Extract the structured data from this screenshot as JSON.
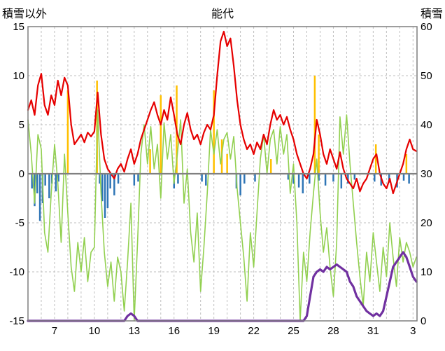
{
  "chart_data": {
    "type": "line",
    "title": "能代",
    "left_axis": {
      "label": "積雪以外",
      "min": -15,
      "max": 15,
      "ticks": [
        15,
        10,
        5,
        0,
        -5,
        -10,
        -15
      ]
    },
    "right_axis": {
      "label": "積雪",
      "min": 0,
      "max": 60,
      "ticks": [
        60,
        50,
        40,
        30,
        20,
        10,
        0
      ]
    },
    "x_axis": {
      "min": 5,
      "max": 34.3,
      "tick_days": [
        7,
        10,
        13,
        16,
        19,
        22,
        25,
        28,
        31,
        34
      ],
      "tick_labels": [
        "7",
        "10",
        "13",
        "16",
        "19",
        "22",
        "25",
        "28",
        "31",
        "3"
      ],
      "grid_interval": 1
    },
    "x_start": 5,
    "x_step": 0.25,
    "colors": {
      "red_line": "#e60000",
      "green_line": "#92d050",
      "blue_bars": "#2e75b6",
      "orange_bars": "#ffc000",
      "purple_snow_line": "#7030a0",
      "grid": "#bfbfbf",
      "border": "#7f7f7f",
      "zero_line": "#808080"
    },
    "series": {
      "red_line": {
        "axis": "left",
        "values": [
          6.5,
          7.5,
          6,
          9,
          10.2,
          7,
          6,
          8,
          7,
          9.5,
          8,
          9.8,
          9,
          5,
          3,
          3.5,
          4,
          3.2,
          4.2,
          3.8,
          4.3,
          8.3,
          4,
          1.5,
          0.5,
          0,
          -0.5,
          0.5,
          1,
          0.2,
          1.5,
          2.5,
          1,
          2,
          3.5,
          4.5,
          5.5,
          6.5,
          7.3,
          6,
          5,
          6.5,
          5.5,
          7.8,
          6,
          4,
          3,
          5,
          6.2,
          4.5,
          3.5,
          4,
          3,
          4.2,
          5,
          4.5,
          6,
          10,
          13.5,
          14.5,
          13,
          13.8,
          11,
          7.5,
          5,
          3.5,
          2.5,
          3,
          2,
          3.2,
          2.5,
          4,
          3,
          5,
          6.5,
          5.5,
          6,
          5,
          5.8,
          4.5,
          3.5,
          2,
          1,
          0,
          -0.5,
          0.5,
          2,
          5.5,
          4,
          2,
          1,
          2.5,
          1.5,
          0.5,
          2.2,
          0.5,
          -0.5,
          -1,
          -1.5,
          -0.5,
          -1.8,
          -1,
          -0.5,
          0.5,
          1.5,
          2,
          0,
          -1,
          -1.5,
          -0.5,
          -2,
          -1,
          0,
          1,
          2.5,
          3.5,
          2.5,
          2.3
        ]
      },
      "green_line": {
        "axis": "left",
        "values": [
          5.5,
          2,
          -3,
          4,
          2.5,
          -6,
          -8,
          -2,
          3,
          -1,
          -7,
          2,
          -4,
          -9.5,
          -12,
          -7,
          -10,
          -6.5,
          -11,
          -8,
          -7.5,
          6.5,
          -2,
          -8,
          -11.5,
          -9,
          -13,
          -8.5,
          -10,
          -14,
          -9,
          -3,
          -15,
          -7,
          2,
          5,
          1,
          4.8,
          0.5,
          3,
          -2.5,
          5.2,
          1.5,
          4,
          -1,
          2,
          5.5,
          -3,
          0.5,
          -6,
          -9,
          -4,
          -12,
          -7.5,
          -2,
          4.5,
          2,
          4.5,
          1,
          3.5,
          4.2,
          1.5,
          3.8,
          -1.5,
          -5,
          -8.5,
          -13,
          -6,
          -9.5,
          -4,
          1.5,
          4,
          0,
          3.5,
          4.5,
          1,
          4.8,
          2,
          4,
          -2,
          1,
          -5,
          -15,
          -8,
          -11,
          -6,
          -2,
          1.5,
          -4,
          -8,
          -5.5,
          -9.5,
          -12.5,
          -7,
          5.8,
          2,
          6,
          1,
          -3,
          -7,
          -10.5,
          -13.5,
          -8,
          -11,
          -6,
          -9,
          -12,
          -7.5,
          -10.5,
          -5,
          -8.5,
          -11.5,
          -6.5,
          -9,
          -7,
          -8,
          -9.5,
          -8.5
        ]
      },
      "purple_snow_line": {
        "axis": "right",
        "values": [
          0,
          0,
          0,
          0,
          0,
          0,
          0,
          0,
          0,
          0,
          0,
          0,
          0,
          0,
          0,
          0,
          0,
          0,
          0,
          0,
          0,
          0,
          0,
          0,
          0,
          0,
          0,
          0,
          0,
          0,
          1,
          1.5,
          1,
          0,
          0,
          0,
          0,
          0,
          0,
          0,
          0,
          0,
          0,
          0,
          0,
          0,
          0,
          0,
          0,
          0,
          0,
          0,
          0,
          0,
          0,
          0,
          0,
          0,
          0,
          0,
          0,
          0,
          0,
          0,
          0,
          0,
          0,
          0,
          0,
          0,
          0,
          0,
          0,
          0,
          0,
          0,
          0,
          0,
          0,
          0,
          0,
          0,
          0,
          0,
          1,
          5,
          9,
          10,
          10.5,
          10,
          11,
          10.5,
          11,
          11.5,
          11,
          10.5,
          10,
          8,
          7,
          5,
          4,
          3,
          2,
          1.5,
          1,
          1.5,
          1,
          2,
          5,
          8,
          11,
          12,
          13,
          14,
          13,
          11,
          9,
          8
        ]
      },
      "blue_bars": {
        "axis": "left",
        "points": [
          [
            5.3,
            -1.5
          ],
          [
            5.5,
            -3.3
          ],
          [
            5.7,
            -2.0
          ],
          [
            5.9,
            -4.8
          ],
          [
            6.1,
            -3.0
          ],
          [
            6.3,
            -1.2
          ],
          [
            6.6,
            -2.5
          ],
          [
            6.8,
            -1.0
          ],
          [
            7.1,
            -1.8
          ],
          [
            7.3,
            -0.8
          ],
          [
            10.4,
            -1.0
          ],
          [
            10.6,
            -2.8
          ],
          [
            10.8,
            -4.5
          ],
          [
            11.0,
            -3.5
          ],
          [
            11.2,
            -1.5
          ],
          [
            11.5,
            -2.2
          ],
          [
            11.8,
            -1.0
          ],
          [
            13.0,
            -1.2
          ],
          [
            13.3,
            -0.8
          ],
          [
            16.0,
            -1.5
          ],
          [
            16.3,
            -1.0
          ],
          [
            18.1,
            -0.8
          ],
          [
            18.4,
            -1.2
          ],
          [
            20.7,
            -1.5
          ],
          [
            21.0,
            -2.2
          ],
          [
            21.3,
            -1.0
          ],
          [
            22.1,
            -0.8
          ],
          [
            24.6,
            -0.6
          ],
          [
            25.0,
            -1.0
          ],
          [
            25.4,
            -1.4
          ],
          [
            25.7,
            -2.0
          ],
          [
            26.2,
            -1.0
          ],
          [
            26.9,
            -0.7
          ],
          [
            27.4,
            -1.2
          ],
          [
            28.0,
            -0.8
          ],
          [
            28.6,
            -1.5
          ],
          [
            29.1,
            -1.0
          ],
          [
            29.6,
            -0.6
          ],
          [
            31.1,
            -0.8
          ],
          [
            31.6,
            -1.2
          ],
          [
            32.2,
            -0.9
          ],
          [
            32.8,
            -1.4
          ],
          [
            33.3,
            -0.7
          ],
          [
            33.7,
            -1.0
          ]
        ]
      },
      "orange_bars": {
        "axis": "left",
        "points": [
          [
            8.0,
            8.5
          ],
          [
            10.2,
            9.5
          ],
          [
            14.2,
            2.5
          ],
          [
            15.0,
            8.0
          ],
          [
            16.2,
            9.0
          ],
          [
            19.0,
            8.5
          ],
          [
            19.6,
            3.5
          ],
          [
            20.0,
            2.0
          ],
          [
            23.3,
            1.5
          ],
          [
            26.6,
            10.0
          ],
          [
            26.9,
            4.0
          ],
          [
            31.2,
            3.0
          ],
          [
            33.5,
            2.0
          ]
        ]
      }
    }
  }
}
